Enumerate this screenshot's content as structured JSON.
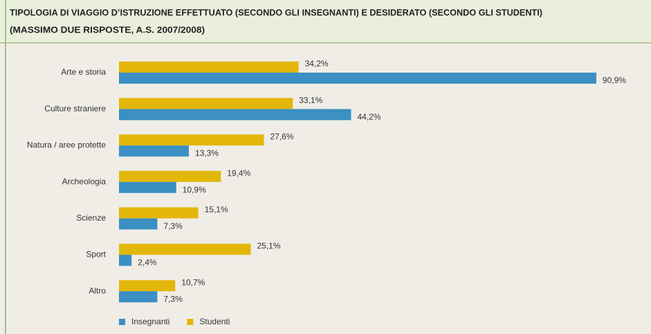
{
  "chart_data": {
    "type": "bar",
    "horizontal": true,
    "title": "TIPOLOGIA DI VIAGGIO D’ISTRUZIONE EFFETTUATO (SECONDO GLI INSEGNANTI) E DESIDERATO (SECONDO GLI STUDENTI)",
    "subtitle": "(MASSIMO DUE RISPOSTE, A.S. 2007/2008)",
    "categories": [
      "Arte e storia",
      "Culture straniere",
      "Natura / aree protette",
      "Archeologia",
      "Scienze",
      "Sport",
      "Altro"
    ],
    "series": [
      {
        "name": "Insegnanti",
        "color": "#3b8fc2",
        "values": [
          90.9,
          44.2,
          13.3,
          10.9,
          7.3,
          2.4,
          7.3
        ],
        "value_labels": [
          "90,9%",
          "44,2%",
          "13,3%",
          "10,9%",
          "7,3%",
          "2,4%",
          "7,3%"
        ]
      },
      {
        "name": "Studenti",
        "color": "#e3b70a",
        "values": [
          34.2,
          33.1,
          27.6,
          19.4,
          15.1,
          25.1,
          10.7
        ],
        "value_labels": [
          "34,2%",
          "33,1%",
          "27,6%",
          "19,4%",
          "15,1%",
          "25,1%",
          "10,7%"
        ]
      }
    ],
    "legend": "bottom"
  }
}
